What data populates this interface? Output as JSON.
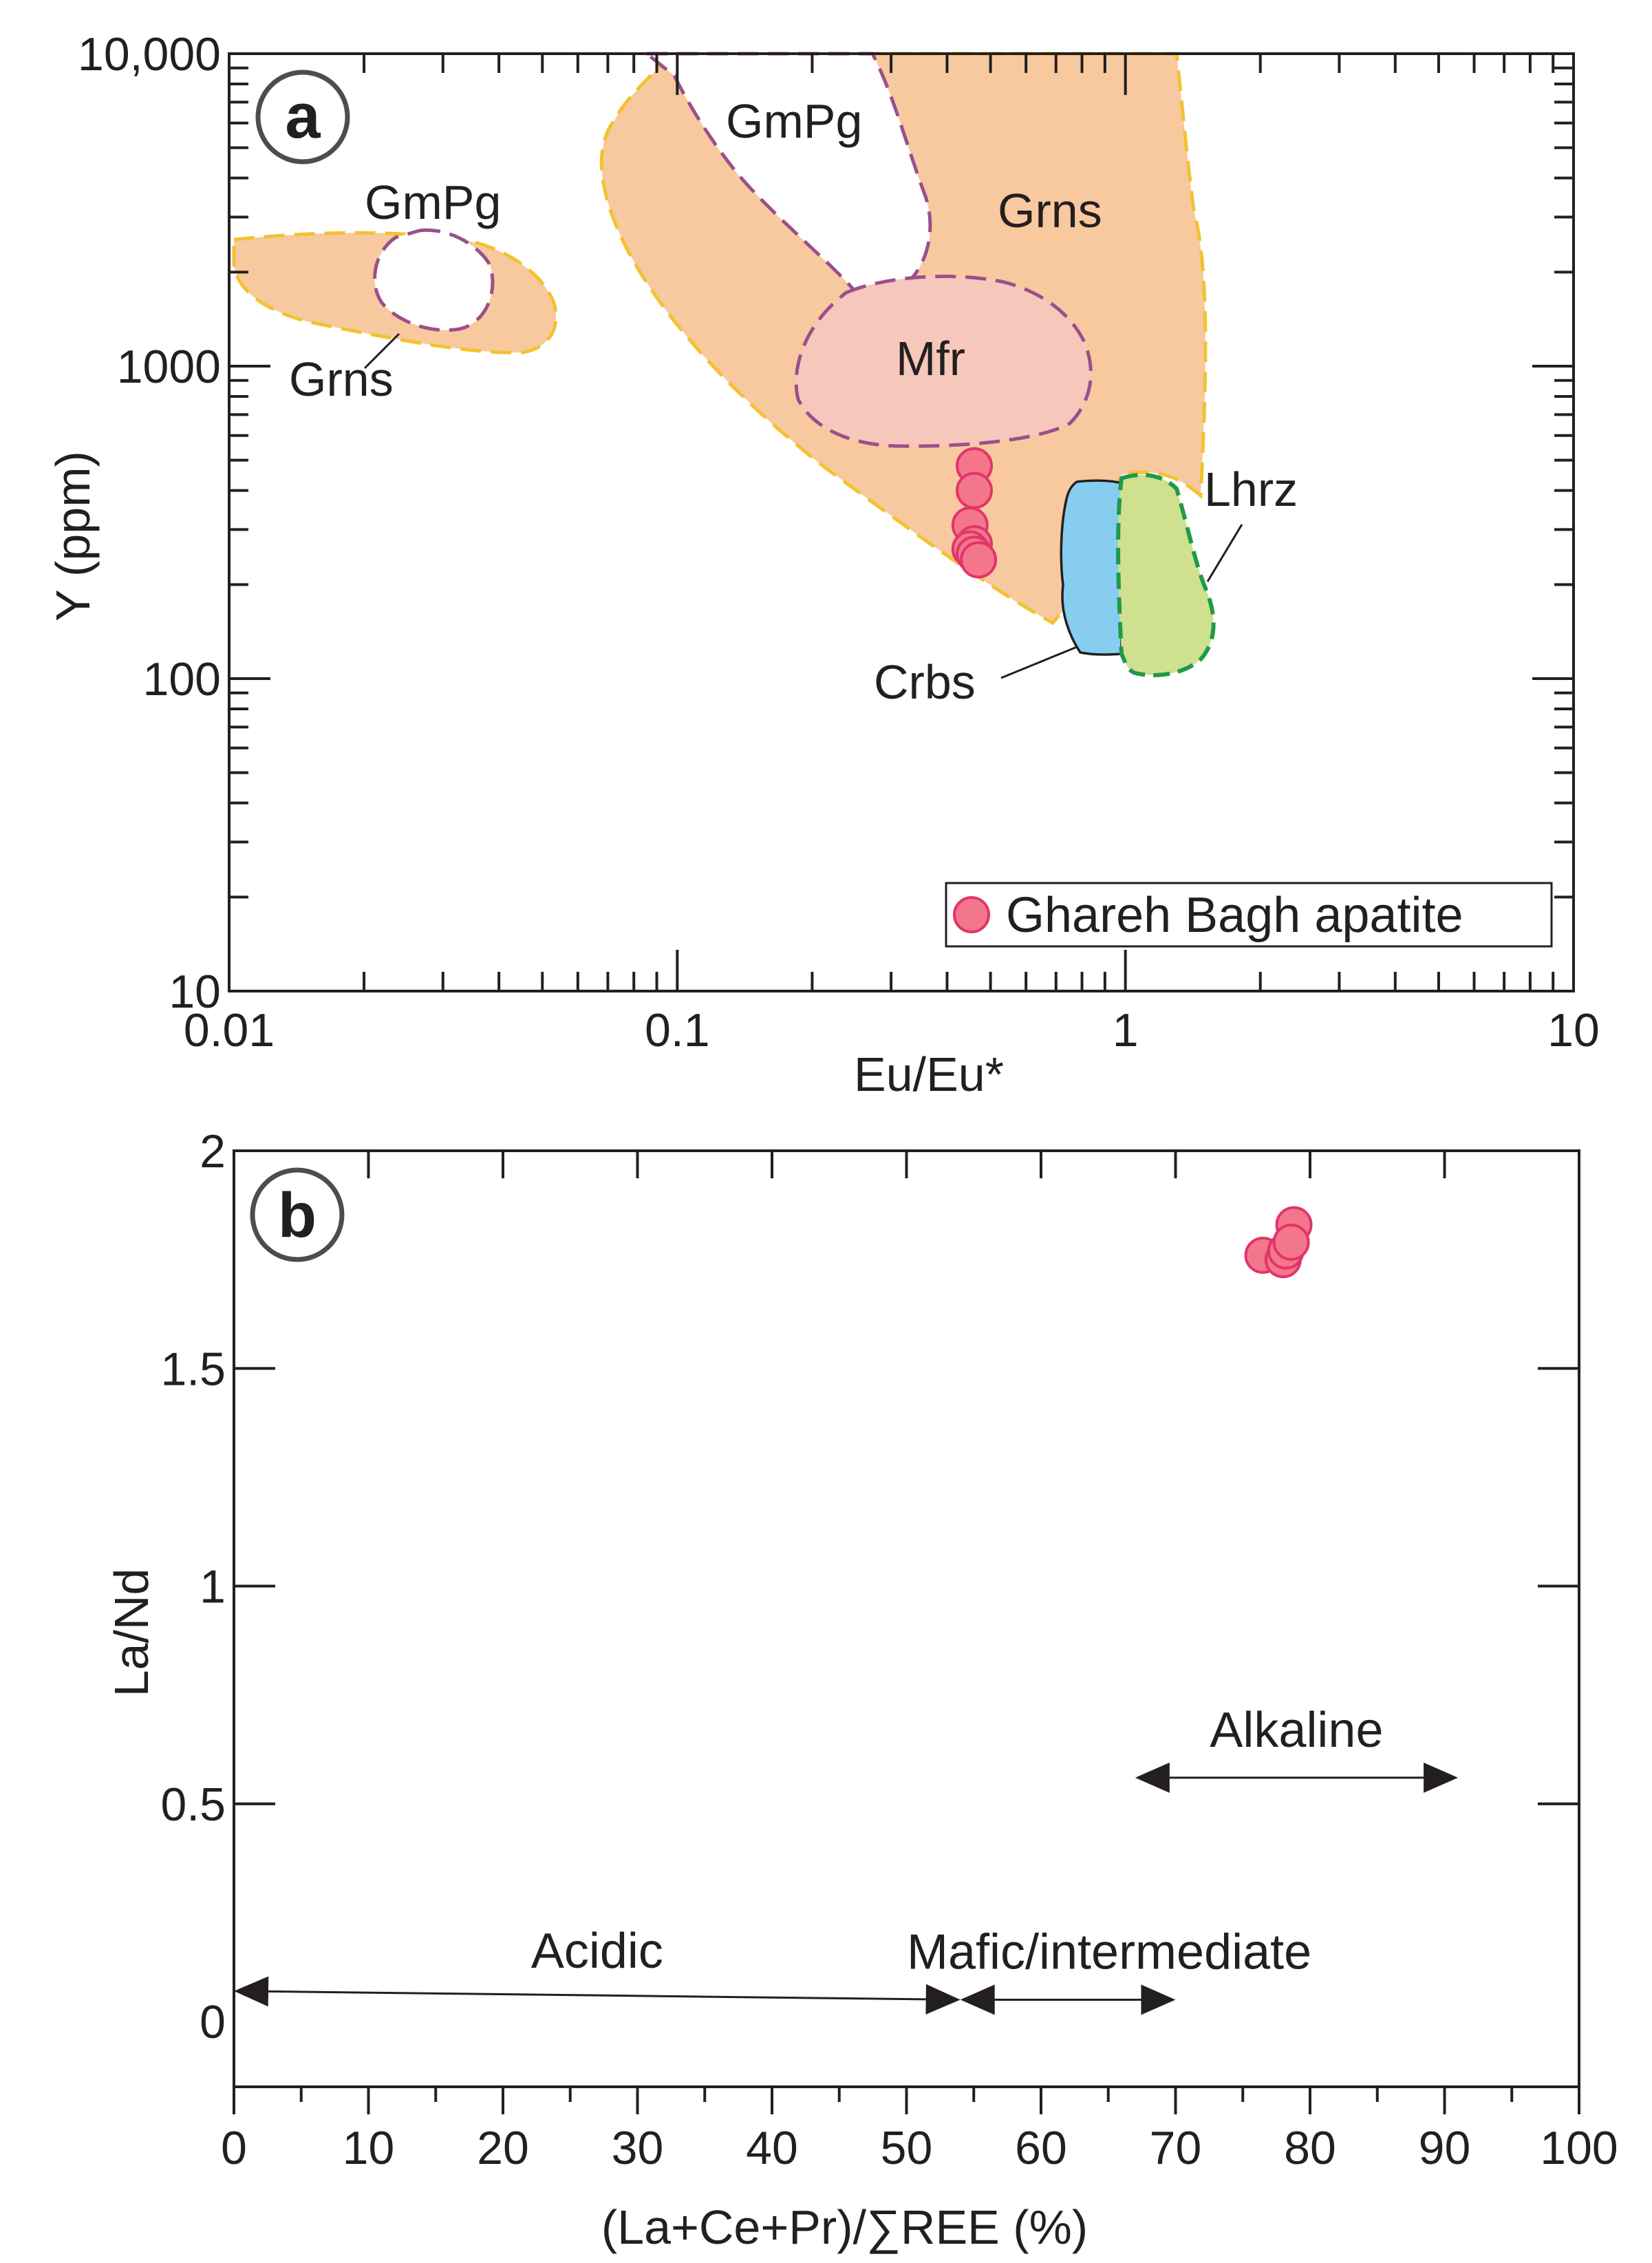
{
  "chart_data": [
    {
      "panel": "a",
      "type": "scatter",
      "xlabel": "Eu/Eu*",
      "ylabel": "Y (ppm)",
      "xscale": "log",
      "yscale": "log",
      "xlim": [
        0.01,
        10
      ],
      "ylim": [
        10,
        10000
      ],
      "x_tick_labels": [
        "0.01",
        "0.1",
        "1",
        "10"
      ],
      "y_tick_labels": [
        "10",
        "100",
        "1000",
        "10,000"
      ],
      "legend": {
        "placement": "bottom-right",
        "label": "Ghareh Bagh apatite",
        "marker_color": "#f4768a"
      },
      "series": [
        {
          "name": "Ghareh Bagh apatite",
          "x": [
            0.46,
            0.46,
            0.45,
            0.46,
            0.45,
            0.46,
            0.47
          ],
          "y": [
            480,
            400,
            310,
            270,
            260,
            250,
            240
          ]
        }
      ],
      "regions": [
        {
          "label": "Grns",
          "fill": "#f8c99e",
          "edge": "#f2c230",
          "dashed": true
        },
        {
          "label": "Grns",
          "fill": "#f8c99e",
          "edge": "#f2c230",
          "dashed": true
        },
        {
          "label": "GmPg",
          "fill": "#ffffff",
          "edge": "#9b4f8c",
          "dashed": true
        },
        {
          "label": "GmPg",
          "fill": "#ffffff",
          "edge": "#9b4f8c",
          "dashed": true
        },
        {
          "label": "Mfr",
          "fill": "#f6c8bb",
          "edge": "#9b4f8c",
          "dashed": true
        },
        {
          "label": "Crbs",
          "fill": "#86cdf0",
          "edge": "#231f20",
          "dashed": false
        },
        {
          "label": "Lhrz",
          "fill": "#cfe08f",
          "edge": "#1e9a4a",
          "dashed": true
        }
      ]
    },
    {
      "panel": "b",
      "type": "scatter",
      "xlabel": "(La+Ce+Pr)/∑REE (%)",
      "ylabel": "La/Nd",
      "xlim": [
        0,
        100
      ],
      "ylim": [
        -0.15,
        2
      ],
      "x_tick_labels": [
        "0",
        "10",
        "20",
        "30",
        "40",
        "50",
        "60",
        "70",
        "80",
        "90",
        "100"
      ],
      "y_tick_labels": [
        "0",
        "0.5",
        "1",
        "1.5",
        "2"
      ],
      "series": [
        {
          "name": "Ghareh Bagh apatite",
          "x": [
            78.8,
            76.5,
            78.0,
            78.2,
            78.6
          ],
          "y": [
            1.83,
            1.76,
            1.75,
            1.77,
            1.79
          ]
        }
      ],
      "ranges": [
        {
          "label": "Acidic",
          "x": [
            0,
            54
          ],
          "y": [
            0.07,
            0.05
          ]
        },
        {
          "label": "Mafic/intermediate",
          "x": [
            54,
            70
          ],
          "y": [
            0.05,
            0.05
          ]
        },
        {
          "label": "Alkaline",
          "x": [
            67,
            91
          ],
          "y": [
            0.56,
            0.56
          ]
        }
      ]
    }
  ],
  "colors": {
    "point_fill": "#f4768a",
    "point_edge": "#e0356b",
    "axis": "#231f20"
  }
}
